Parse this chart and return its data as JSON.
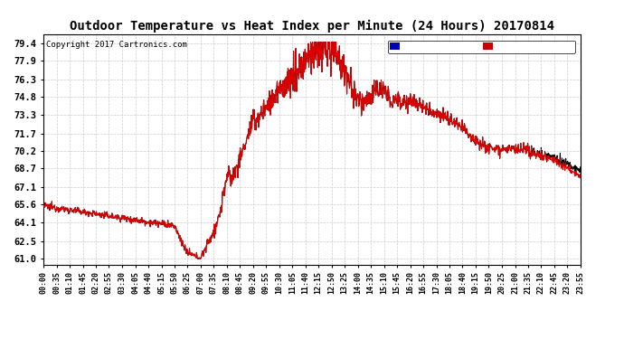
{
  "title": "Outdoor Temperature vs Heat Index per Minute (24 Hours) 20170814",
  "copyright": "Copyright 2017 Cartronics.com",
  "ylabel_ticks": [
    61.0,
    62.5,
    64.1,
    65.6,
    67.1,
    68.7,
    70.2,
    71.7,
    73.3,
    74.8,
    76.3,
    77.9,
    79.4
  ],
  "ylim": [
    60.5,
    80.2
  ],
  "plot_bg": "#ffffff",
  "fig_bg": "#ffffff",
  "grid_color": "#cccccc",
  "line_color_temp": "#dd0000",
  "line_color_heat": "#000000",
  "title_fontsize": 11,
  "legend_heat_bg": "#0000bb",
  "legend_temp_bg": "#cc0000",
  "x_tick_labels": [
    "00:00",
    "00:35",
    "01:10",
    "01:45",
    "02:20",
    "02:55",
    "03:30",
    "04:05",
    "04:40",
    "05:15",
    "05:50",
    "06:25",
    "07:00",
    "07:35",
    "08:10",
    "08:45",
    "09:20",
    "09:55",
    "10:30",
    "11:05",
    "11:40",
    "12:15",
    "12:50",
    "13:25",
    "14:00",
    "14:35",
    "15:10",
    "15:45",
    "16:20",
    "16:55",
    "17:30",
    "18:05",
    "18:40",
    "19:15",
    "19:50",
    "20:25",
    "21:00",
    "21:35",
    "22:10",
    "22:45",
    "23:20",
    "23:55"
  ],
  "n_points": 1440,
  "seed": 12345
}
